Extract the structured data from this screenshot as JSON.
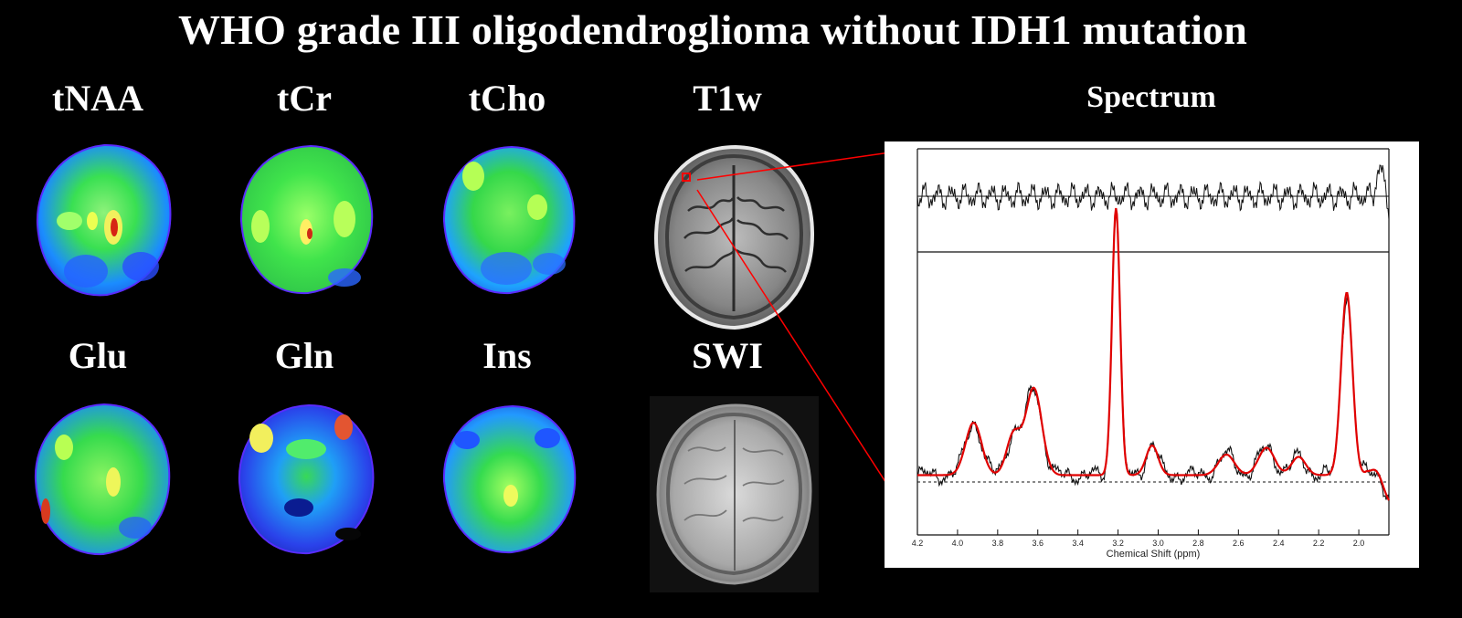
{
  "figure": {
    "title": "WHO grade III oligodendroglioma without IDH1 mutation"
  },
  "maps": {
    "labels": [
      "tNAA",
      "tCr",
      "tCho",
      "Glu",
      "Gln",
      "Ins"
    ]
  },
  "anatomy": {
    "t1w_label": "T1w",
    "swi_label": "SWI"
  },
  "spectrum": {
    "label": "Spectrum",
    "xlabel": "Chemical Shift (ppm)",
    "ticks": [
      "4.2",
      "4.0",
      "3.8",
      "3.6",
      "3.4",
      "3.2",
      "3.0",
      "2.8",
      "2.6",
      "2.4",
      "2.2",
      "2.0"
    ]
  },
  "colors": {
    "background": "#000000",
    "connector": "#ff0000",
    "fit": "#e00000",
    "data": "#111111",
    "map_low": "#2a54ff",
    "map_mid": "#35d84a",
    "map_high": "#e64524"
  },
  "chart_data": {
    "type": "line",
    "xlabel": "Chemical Shift (ppm)",
    "xlim": [
      4.2,
      1.85
    ],
    "ylim": [
      -0.12,
      1.25
    ],
    "grid": false,
    "series": [
      {
        "peaks_ppm": [
          3.92,
          3.72,
          3.62,
          3.21,
          3.03,
          2.66,
          2.46,
          2.3,
          2.06,
          1.91
        ],
        "values": [
          0.23,
          0.18,
          0.38,
          1.17,
          0.13,
          0.09,
          0.12,
          0.08,
          0.8,
          0.07
        ]
      }
    ]
  }
}
